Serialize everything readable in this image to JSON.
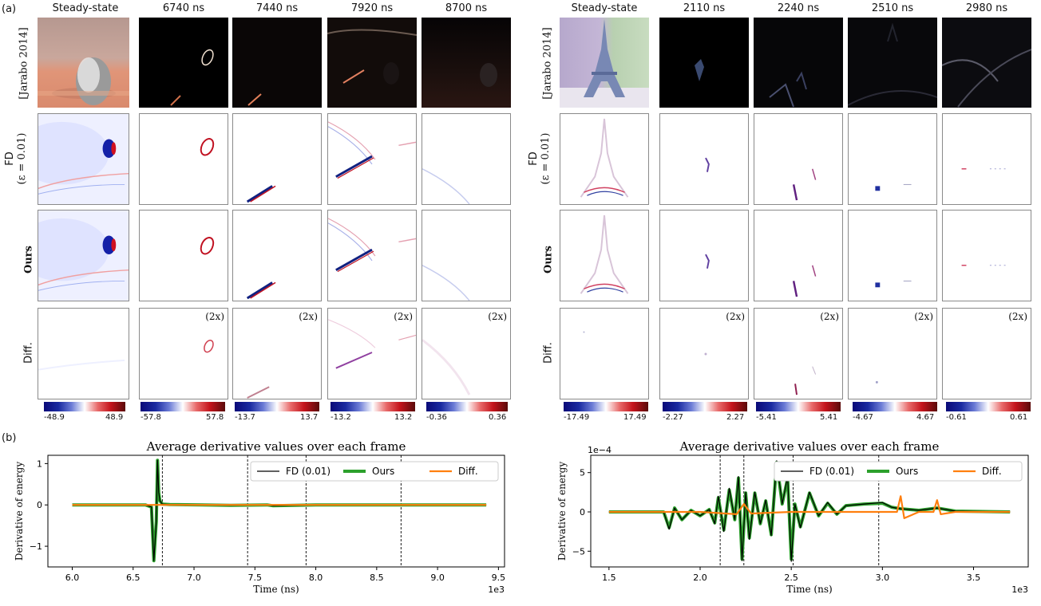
{
  "labels": {
    "a": "(a)",
    "b": "(b)"
  },
  "left": {
    "headers": [
      "Steady-state",
      "6740 ns",
      "7440 ns",
      "7920 ns",
      "8700 ns"
    ],
    "colorbars": [
      [
        "-48.9",
        "48.9"
      ],
      [
        "-57.8",
        "57.8"
      ],
      [
        "-13.7",
        "13.7"
      ],
      [
        "-13.2",
        "13.2"
      ],
      [
        "-0.36",
        "0.36"
      ]
    ]
  },
  "right": {
    "headers": [
      "Steady-state",
      "2110 ns",
      "2240 ns",
      "2510 ns",
      "2980 ns"
    ],
    "colorbars": [
      [
        "-17.49",
        "17.49"
      ],
      [
        "-2.27",
        "2.27"
      ],
      [
        "-5.41",
        "5.41"
      ],
      [
        "-4.67",
        "4.67"
      ],
      [
        "-0.61",
        "0.61"
      ]
    ]
  },
  "rows": {
    "ref": "[Jarabo 2014]",
    "fd1": "FD",
    "fd2": "(ε = 0.01)",
    "ours": "Ours",
    "diff": "Diff.",
    "scale": "(2x)"
  },
  "chart_data": [
    {
      "type": "line",
      "title": "Average derivative values over each frame",
      "xlabel": "Time (ns)",
      "ylabel": "Derivative of energy",
      "x_multiplier": "1e3",
      "y_multiplier": "",
      "xlim": [
        5.8,
        9.55
      ],
      "ylim": [
        -1.5,
        1.2
      ],
      "xticks": [
        "6.0",
        "6.5",
        "7.0",
        "7.5",
        "8.0",
        "8.5",
        "9.0",
        "9.5"
      ],
      "yticks": [
        "1",
        "0",
        "−1"
      ],
      "ytick_values": [
        1,
        0,
        -1
      ],
      "vlines": [
        6.74,
        7.44,
        7.92,
        8.7
      ],
      "legend": [
        "FD (0.01)",
        "Ours",
        "Diff."
      ],
      "legend_position": "top-right",
      "colors": {
        "fd": "#000000",
        "ours": "#2ca02c",
        "diff": "#ff7f0e"
      },
      "series": [
        {
          "name": "FD (0.01)",
          "x": [
            6.0,
            6.6,
            6.65,
            6.67,
            6.69,
            6.7,
            6.71,
            6.72,
            6.74,
            6.8,
            7.3,
            7.6,
            7.65,
            8.0,
            9.4
          ],
          "y": [
            0,
            0,
            -0.05,
            -1.35,
            -0.4,
            1.08,
            0.3,
            0.1,
            0.02,
            0.01,
            -0.01,
            0,
            -0.02,
            0,
            0
          ]
        },
        {
          "name": "Ours",
          "x": [
            6.0,
            6.6,
            6.65,
            6.67,
            6.69,
            6.7,
            6.71,
            6.72,
            6.74,
            6.8,
            7.3,
            7.6,
            7.65,
            8.0,
            9.4
          ],
          "y": [
            0,
            0,
            -0.05,
            -1.35,
            -0.4,
            1.08,
            0.3,
            0.1,
            0.02,
            0.01,
            -0.01,
            0,
            -0.02,
            0,
            0
          ]
        },
        {
          "name": "Diff.",
          "x": [
            6.0,
            7.0,
            7.5,
            8.0,
            8.5,
            9.4
          ],
          "y": [
            0,
            0,
            0,
            0,
            0,
            0
          ]
        }
      ]
    },
    {
      "type": "line",
      "title": "Average derivative values over each frame",
      "xlabel": "Time (ns)",
      "ylabel": "Derivative of energy",
      "x_multiplier": "1e3",
      "y_multiplier": "1e−4",
      "xlim": [
        1.4,
        3.8
      ],
      "ylim": [
        -7.0,
        7.2
      ],
      "xticks": [
        "1.5",
        "2.0",
        "2.5",
        "3.0",
        "3.5"
      ],
      "yticks": [
        "5",
        "0",
        "−5"
      ],
      "ytick_values": [
        5,
        0,
        -5
      ],
      "vlines": [
        2.11,
        2.24,
        2.51,
        2.98
      ],
      "legend": [
        "FD (0.01)",
        "Ours",
        "Diff."
      ],
      "legend_position": "top-right",
      "colors": {
        "fd": "#000000",
        "ours": "#2ca02c",
        "diff": "#ff7f0e"
      },
      "series": [
        {
          "name": "FD (0.01)",
          "x": [
            1.5,
            1.8,
            1.83,
            1.86,
            1.9,
            1.95,
            2.0,
            2.05,
            2.08,
            2.1,
            2.13,
            2.16,
            2.19,
            2.21,
            2.23,
            2.25,
            2.27,
            2.3,
            2.33,
            2.36,
            2.39,
            2.42,
            2.45,
            2.48,
            2.5,
            2.52,
            2.55,
            2.6,
            2.65,
            2.7,
            2.75,
            2.8,
            2.9,
            3.0,
            3.05,
            3.1,
            3.2,
            3.3,
            3.4,
            3.7
          ],
          "y": [
            0,
            0,
            -2.2,
            0.5,
            -1.0,
            0.2,
            -0.5,
            0.3,
            -1.5,
            2.0,
            -2.5,
            3.0,
            -1.0,
            4.5,
            -6.2,
            2.5,
            -3.5,
            2.5,
            -1.5,
            1.5,
            -3.0,
            6.5,
            1.0,
            4.5,
            -6.3,
            1.0,
            -2.0,
            2.5,
            -0.5,
            1.2,
            -0.3,
            0.8,
            1.0,
            1.2,
            0.6,
            0.4,
            0.2,
            0.5,
            0.1,
            0
          ]
        },
        {
          "name": "Ours",
          "x": [
            1.5,
            1.8,
            1.83,
            1.86,
            1.9,
            1.95,
            2.0,
            2.05,
            2.08,
            2.1,
            2.13,
            2.16,
            2.19,
            2.21,
            2.23,
            2.25,
            2.27,
            2.3,
            2.33,
            2.36,
            2.39,
            2.42,
            2.45,
            2.48,
            2.5,
            2.52,
            2.55,
            2.6,
            2.65,
            2.7,
            2.75,
            2.8,
            2.9,
            3.0,
            3.05,
            3.1,
            3.2,
            3.3,
            3.4,
            3.7
          ],
          "y": [
            0,
            0,
            -2.0,
            0.5,
            -1.0,
            0.2,
            -0.5,
            0.3,
            -1.4,
            1.8,
            -2.3,
            2.8,
            -1.0,
            4.3,
            -6.0,
            2.4,
            -3.3,
            2.4,
            -1.5,
            1.4,
            -2.9,
            6.3,
            1.0,
            4.3,
            -6.0,
            1.0,
            -1.9,
            2.4,
            -0.5,
            1.1,
            -0.3,
            0.8,
            1.0,
            1.1,
            0.6,
            0.4,
            0.2,
            0.5,
            0.1,
            0
          ]
        },
        {
          "name": "Diff.",
          "x": [
            1.5,
            2.0,
            2.2,
            2.24,
            2.28,
            2.5,
            2.8,
            3.08,
            3.1,
            3.12,
            3.2,
            3.28,
            3.3,
            3.32,
            3.4,
            3.7
          ],
          "y": [
            0,
            0,
            -0.3,
            1.0,
            -0.2,
            0,
            0,
            0,
            2.0,
            -0.8,
            0,
            0,
            1.5,
            -0.3,
            0,
            0
          ]
        }
      ]
    }
  ]
}
